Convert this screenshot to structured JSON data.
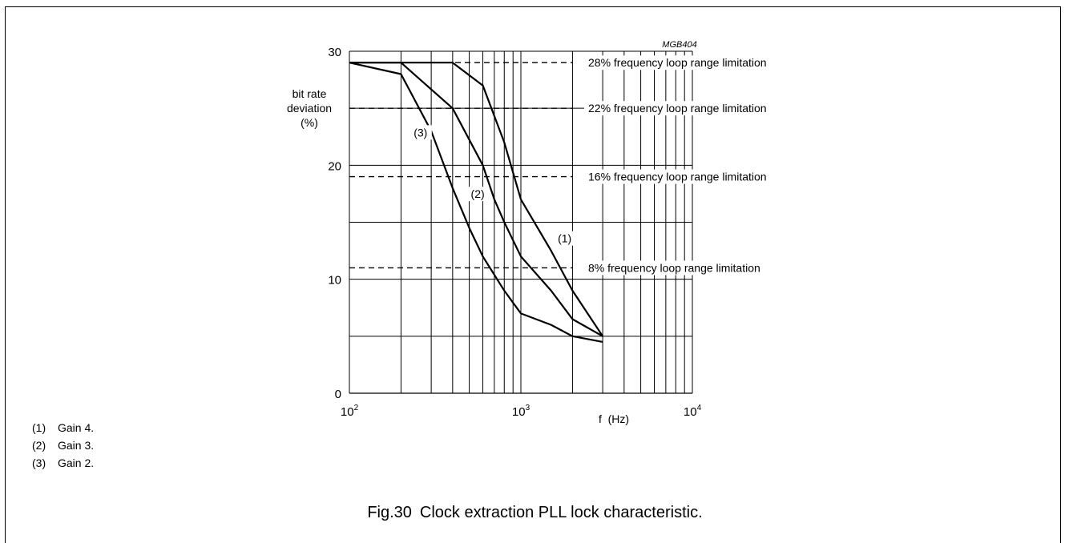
{
  "code_label": "MGB404",
  "ylabel_lines": [
    "bit rate",
    "deviation",
    "(%)"
  ],
  "xlabel": "f  (Hz)",
  "caption": {
    "number": "Fig.30",
    "text": "Clock extraction PLL lock characteristic."
  },
  "key": [
    {
      "num": "(1)",
      "text": "Gain 4."
    },
    {
      "num": "(2)",
      "text": "Gain 3."
    },
    {
      "num": "(3)",
      "text": "Gain 2."
    }
  ],
  "chart_data": {
    "type": "line",
    "x_scale": "log",
    "xlim": [
      100,
      10000
    ],
    "ylim": [
      0,
      30
    ],
    "x_ticks": [
      {
        "value": 100,
        "base": "10",
        "exp": "2"
      },
      {
        "value": 1000,
        "base": "10",
        "exp": "3"
      },
      {
        "value": 10000,
        "base": "10",
        "exp": "4"
      }
    ],
    "y_ticks": [
      0,
      10,
      20,
      30
    ],
    "y_grid": [
      5,
      10,
      15,
      20,
      25,
      30
    ],
    "grid": true,
    "series": [
      {
        "name": "(1)",
        "label_at": [
          1800,
          13.3
        ],
        "points": [
          [
            100,
            29
          ],
          [
            400,
            29
          ],
          [
            600,
            27
          ],
          [
            800,
            22
          ],
          [
            1000,
            17
          ],
          [
            1500,
            12.5
          ],
          [
            2000,
            9
          ],
          [
            3000,
            5
          ]
        ]
      },
      {
        "name": "(2)",
        "label_at": [
          560,
          17.2
        ],
        "points": [
          [
            100,
            29
          ],
          [
            200,
            29
          ],
          [
            400,
            25
          ],
          [
            600,
            20
          ],
          [
            700,
            17
          ],
          [
            800,
            15
          ],
          [
            1000,
            12
          ],
          [
            1500,
            9
          ],
          [
            2000,
            6.5
          ],
          [
            3000,
            5
          ]
        ]
      },
      {
        "name": "(3)",
        "label_at": [
          260,
          22.6
        ],
        "points": [
          [
            100,
            29
          ],
          [
            200,
            28
          ],
          [
            300,
            23
          ],
          [
            400,
            18
          ],
          [
            500,
            14.5
          ],
          [
            600,
            12
          ],
          [
            800,
            9
          ],
          [
            1000,
            7
          ],
          [
            1500,
            6
          ],
          [
            2000,
            5
          ],
          [
            3000,
            4.5
          ]
        ]
      }
    ],
    "limits": [
      {
        "value": 29,
        "label": "28% frequency loop range limitation"
      },
      {
        "value": 25,
        "label": "22% frequency loop range limitation"
      },
      {
        "value": 19,
        "label": "16% frequency loop range limitation"
      },
      {
        "value": 11,
        "label": "8% frequency loop range limitation"
      }
    ]
  }
}
